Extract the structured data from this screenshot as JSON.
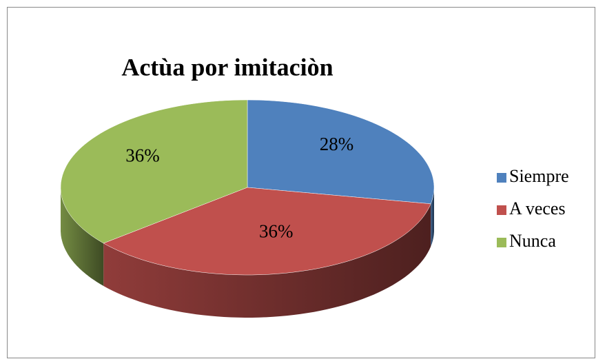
{
  "chart_data": {
    "type": "pie3d",
    "title": "Actùa por imitaciòn",
    "categories": [
      "Siempre",
      "A veces",
      "Nunca"
    ],
    "values": [
      28,
      36,
      36
    ],
    "value_labels": [
      "28%",
      "36%",
      "36%"
    ],
    "colors": [
      "#4f81bd",
      "#c0504d",
      "#9bbb59"
    ],
    "legend": "right"
  }
}
